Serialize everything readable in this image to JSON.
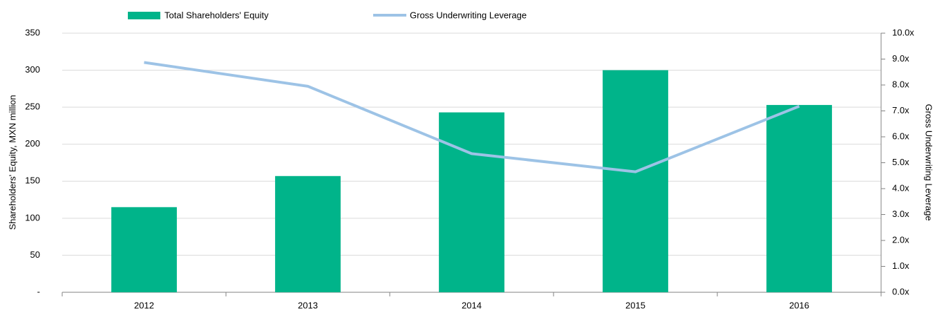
{
  "chart_data": {
    "type": "bar-line",
    "categories": [
      "2012",
      "2013",
      "2014",
      "2015",
      "2016"
    ],
    "series": [
      {
        "name": "Total Shareholders' Equity",
        "type": "bar",
        "color": "#00b48a",
        "values": [
          115,
          157,
          243,
          300,
          253
        ]
      },
      {
        "name": "Gross Underwriting Leverage",
        "type": "line",
        "axis": "y2",
        "color": "#9dc3e6",
        "values": [
          8.87,
          7.95,
          5.35,
          4.65,
          7.18
        ]
      }
    ],
    "ylabel": "Shareholders' Equity, MXN million",
    "y2label": "Gross Underwriting Leverage",
    "ylim": [
      0,
      350
    ],
    "yticks": [
      {
        "value": 0,
        "label": "-"
      },
      50,
      100,
      150,
      200,
      250,
      300,
      350
    ],
    "y2lim": [
      0,
      10
    ],
    "y2ticks": [
      {
        "value": 0,
        "label": "0.0x"
      },
      {
        "value": 1,
        "label": "1.0x"
      },
      {
        "value": 2,
        "label": "2.0x"
      },
      {
        "value": 3,
        "label": "3.0x"
      },
      {
        "value": 4,
        "label": "4.0x"
      },
      {
        "value": 5,
        "label": "5.0x"
      },
      {
        "value": 6,
        "label": "6.0x"
      },
      {
        "value": 7,
        "label": "7.0x"
      },
      {
        "value": 8,
        "label": "8.0x"
      },
      {
        "value": 9,
        "label": "9.0x"
      },
      {
        "value": 10,
        "label": "10.0x"
      }
    ],
    "grid": true,
    "legend": "top"
  }
}
